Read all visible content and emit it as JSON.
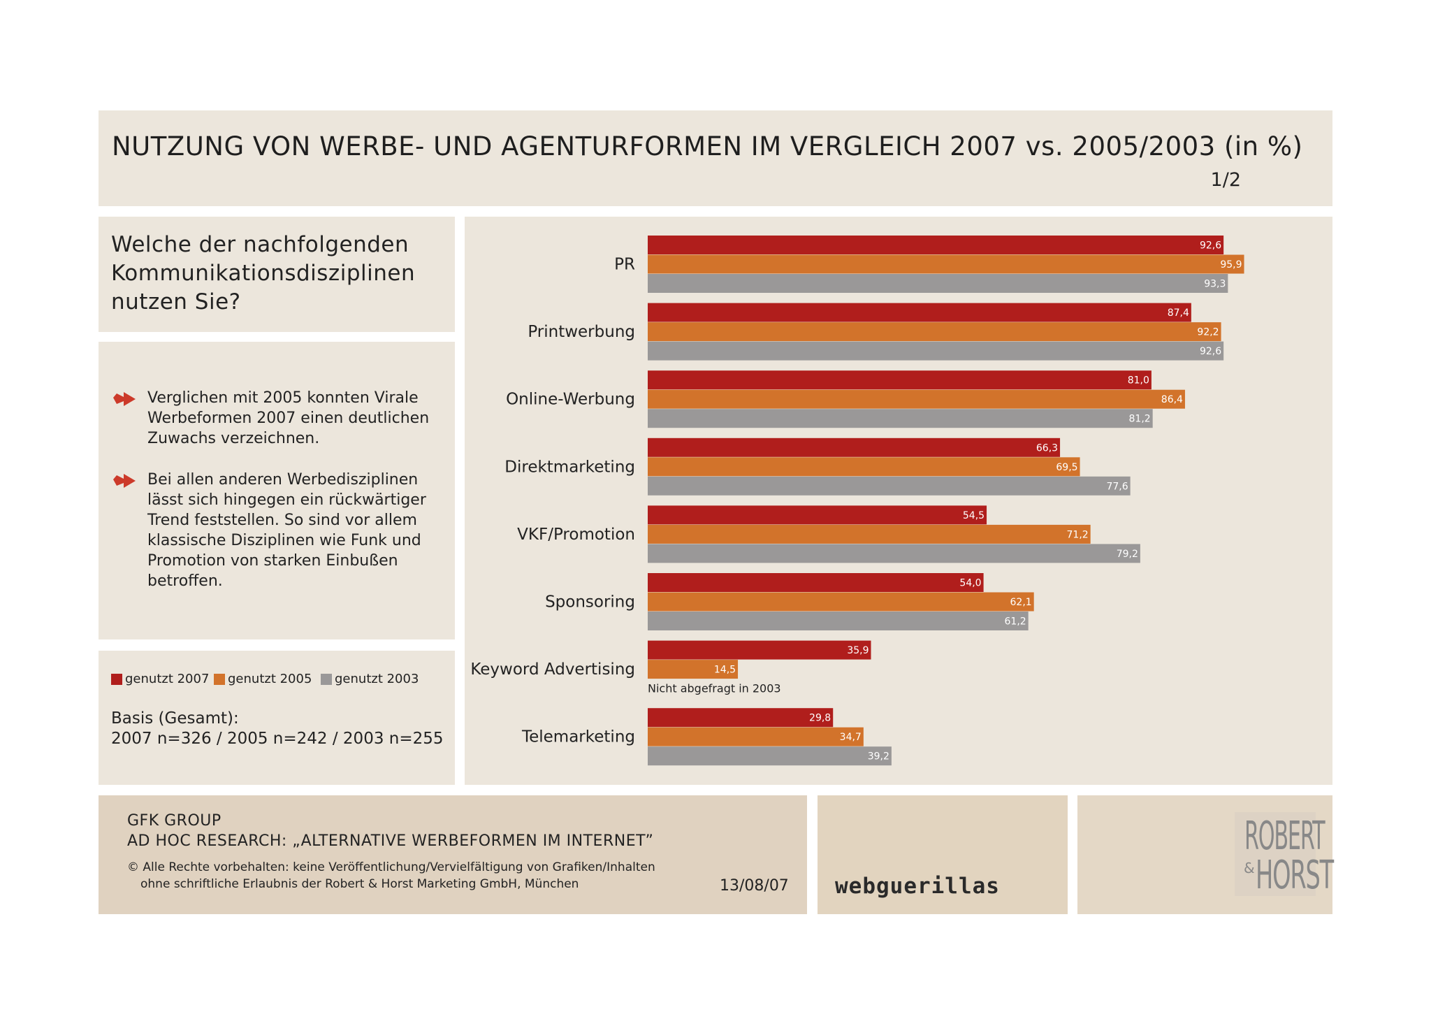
{
  "header": {
    "title": "NUTZUNG VON WERBE- UND AGENTURFORMEN IM VERGLEICH 2007 vs. 2005/2003 (in %)",
    "page": "1/2"
  },
  "question": "Welche der nachfolgenden Kommunikationsdisziplinen nutzen Sie?",
  "notes": [
    "Verglichen mit 2005 konnten Virale Werbeformen 2007 einen deutlichen Zuwachs verzeichnen.",
    "Bei allen anderen Werbedisziplinen lässt sich hingegen ein rückwärtiger Trend feststellen. So sind vor allem klassische Disziplinen wie Funk und Promotion von starken Einbußen betroffen."
  ],
  "legend": {
    "items": [
      "genutzt 2007",
      "genutzt 2005",
      "genutzt 2003"
    ],
    "basis_label": "Basis (Gesamt):",
    "basis_values": "2007 n=326 / 2005 n=242 / 2003 n=255"
  },
  "colors": {
    "series_2007": "#b01e1c",
    "series_2005": "#d2732b",
    "series_2003": "#9a9898",
    "panel_bg": "#ece6dc",
    "arrow": "#cc3a2a"
  },
  "icons": {
    "bullet": "red-arrow-icon"
  },
  "chart_data": {
    "type": "bar",
    "orientation": "horizontal",
    "categories": [
      "PR",
      "Printwerbung",
      "Online-Werbung",
      "Direktmarketing",
      "VKF/Promotion",
      "Sponsoring",
      "Keyword Advertising",
      "Telemarketing"
    ],
    "series": [
      {
        "name": "genutzt 2007",
        "values": [
          92.6,
          87.4,
          81.0,
          66.3,
          54.5,
          54.0,
          35.9,
          29.8
        ],
        "labels": [
          "92,6",
          "87,4",
          "81,0",
          "66,3",
          "54,5",
          "54,0",
          "35,9",
          "29,8"
        ]
      },
      {
        "name": "genutzt 2005",
        "values": [
          95.9,
          92.2,
          86.4,
          69.5,
          71.2,
          62.1,
          14.5,
          34.7
        ],
        "labels": [
          "95,9",
          "92,2",
          "86,4",
          "69,5",
          "71,2",
          "62,1",
          "14,5",
          "34,7"
        ]
      },
      {
        "name": "genutzt 2003",
        "values": [
          93.3,
          92.6,
          81.2,
          77.6,
          79.2,
          61.2,
          null,
          39.2
        ],
        "labels": [
          "93,3",
          "92,6",
          "81,2",
          "77,6",
          "79,2",
          "61,2",
          "",
          "39,2"
        ]
      }
    ],
    "annotations": [
      {
        "category": "Keyword Advertising",
        "text": "Nicht abgefragt in 2003"
      }
    ],
    "xlim": [
      0,
      100
    ],
    "grid": false
  },
  "footer": {
    "company": "GFK GROUP",
    "study": "AD HOC RESEARCH: „ALTERNATIVE WERBEFORMEN IM INTERNET”",
    "copyright_line1": "© Alle Rechte vorbehalten: keine Veröffentlichung/Vervielfältigung von Grafiken/Inhalten",
    "copyright_line2": "ohne schriftliche Erlaubnis der Robert & Horst Marketing GmbH, München",
    "date": "13/08/07",
    "logo_webguerillas": "webguerillas",
    "logo_rh_top": "ROBERT",
    "logo_rh_amp": "&",
    "logo_rh_bottom": "HORST"
  }
}
